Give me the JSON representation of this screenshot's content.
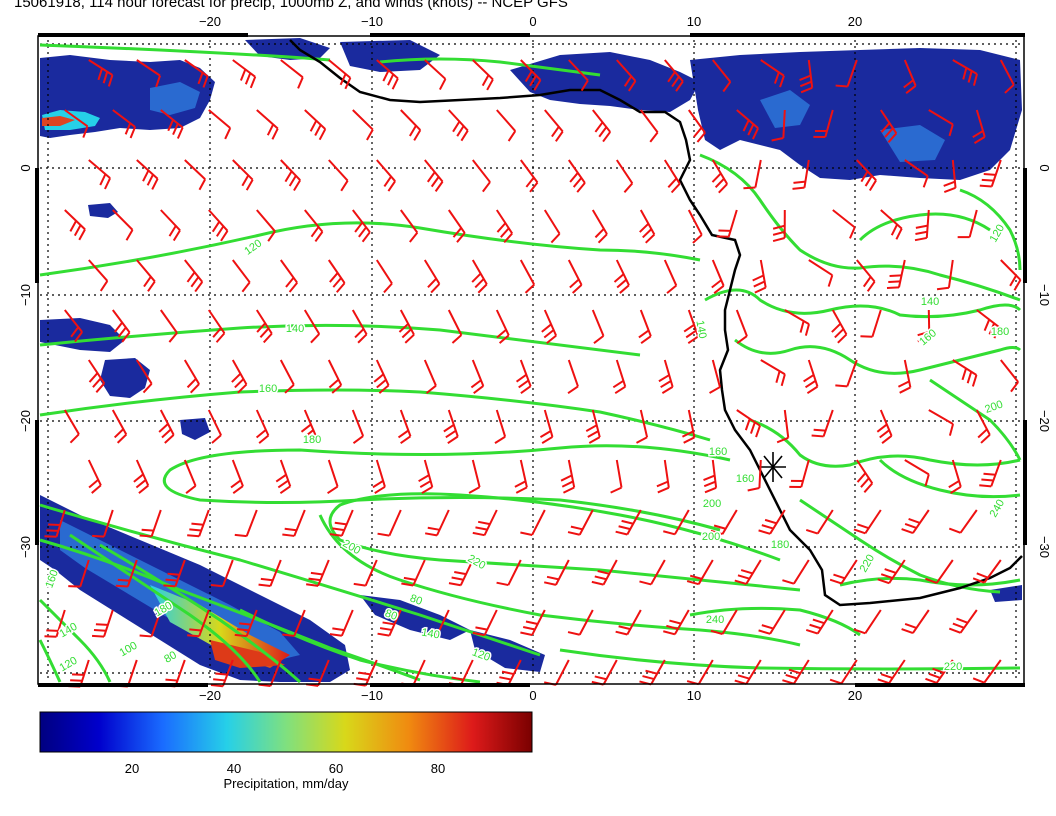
{
  "title": "15061918, 114 hour forecast for precip, 1000mb Z, and winds (knots) -- NCEP GFS",
  "map": {
    "lon_ticks": [
      "−20",
      "−10",
      "0",
      "10",
      "20"
    ],
    "lat_ticks": [
      "0",
      "−10",
      "−20",
      "−30"
    ],
    "contour_labels": [
      {
        "text": "120"
      },
      {
        "text": "140"
      },
      {
        "text": "160"
      },
      {
        "text": "180"
      },
      {
        "text": "200"
      },
      {
        "text": "220"
      },
      {
        "text": "240"
      },
      {
        "text": "220"
      },
      {
        "text": "200"
      },
      {
        "text": "180"
      },
      {
        "text": "160"
      },
      {
        "text": "140"
      },
      {
        "text": "120"
      },
      {
        "text": "80"
      },
      {
        "text": "80"
      },
      {
        "text": "140"
      },
      {
        "text": "140"
      },
      {
        "text": "160"
      },
      {
        "text": "180"
      },
      {
        "text": "200"
      },
      {
        "text": "220"
      },
      {
        "text": "240"
      },
      {
        "text": "200"
      },
      {
        "text": "180"
      },
      {
        "text": "160"
      },
      {
        "text": "120"
      },
      {
        "text": "160"
      },
      {
        "text": "140"
      },
      {
        "text": "120"
      },
      {
        "text": "100"
      },
      {
        "text": "80"
      }
    ],
    "colors": {
      "contour": "#33dd33",
      "barb": "#ee1111",
      "coast": "#000000",
      "precip_low": "#1a2a9e",
      "precip_high": "#c01010"
    }
  },
  "colorbar": {
    "ticks": [
      "20",
      "40",
      "60",
      "80"
    ],
    "label": "Precipitation, mm/day",
    "stops": [
      "#000080",
      "#0000cc",
      "#1a6cff",
      "#26d0e8",
      "#7fe07f",
      "#d8d81a",
      "#f08a10",
      "#dd1a1a",
      "#7a0000"
    ]
  }
}
